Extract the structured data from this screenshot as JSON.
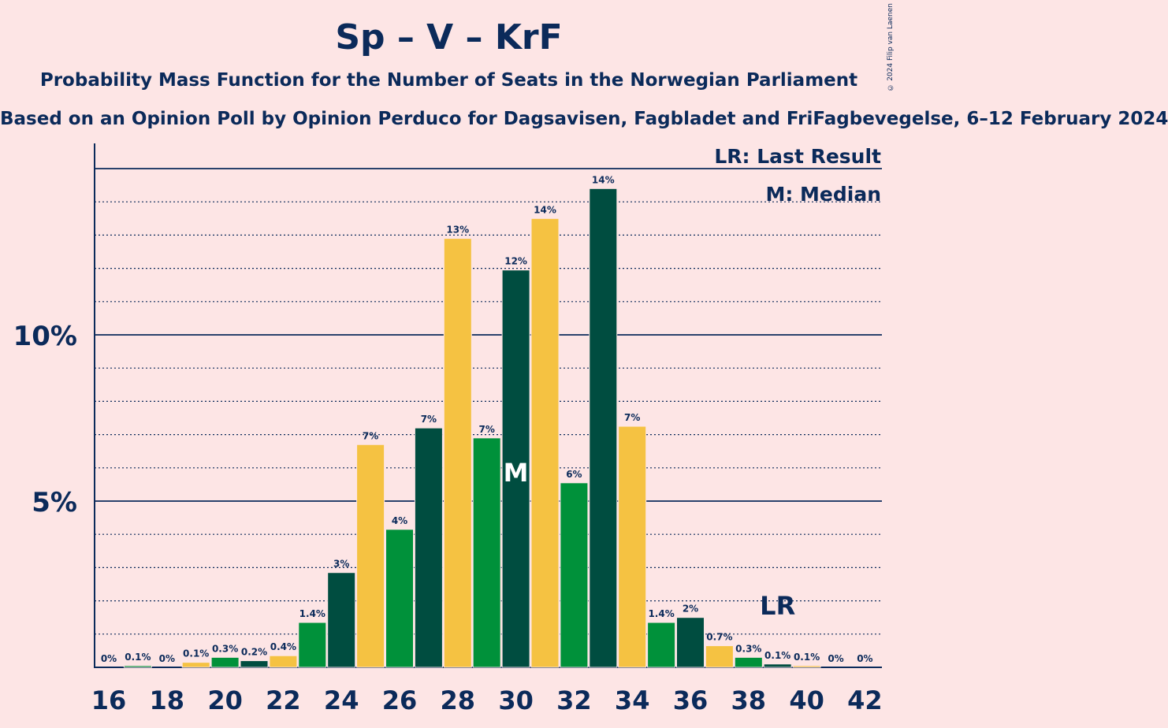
{
  "chart_data": {
    "type": "bar",
    "title": "Sp – V – KrF",
    "subtitle": "Probability Mass Function for the Number of Seats in the Norwegian Parliament",
    "subsubtitle": "Based on an Opinion Poll by Opinion Perduco for Dagsavisen, Fagbladet and FriFagbevegelse, 6–12 February 2024",
    "copyright": "© 2024 Filip van Laenen",
    "legend": {
      "lr": "LR: Last Result",
      "m": "M: Median",
      "placement": "top-right"
    },
    "categories": [
      16,
      17,
      18,
      19,
      20,
      21,
      22,
      23,
      24,
      25,
      26,
      27,
      28,
      29,
      30,
      31,
      32,
      33,
      34,
      35,
      36,
      37,
      38,
      39,
      40,
      41,
      42
    ],
    "values": [
      0.0,
      0.05,
      0.0,
      0.15,
      0.3,
      0.2,
      0.35,
      1.35,
      2.85,
      6.7,
      4.15,
      7.2,
      12.9,
      6.9,
      11.95,
      13.5,
      5.55,
      14.4,
      7.25,
      1.35,
      1.5,
      0.65,
      0.3,
      0.1,
      0.05,
      0.0,
      0.0
    ],
    "labels": [
      "0%",
      "0.1%",
      "0%",
      "0.1%",
      "0.3%",
      "0.2%",
      "0.4%",
      "1.4%",
      "3%",
      "7%",
      "4%",
      "7%",
      "13%",
      "7%",
      "12%",
      "14%",
      "6%",
      "14%",
      "7%",
      "1.4%",
      "2%",
      "0.7%",
      "0.3%",
      "0.1%",
      "0.1%",
      "0%",
      "0%"
    ],
    "colors": [
      "#f5c242",
      "#00913a",
      "#004d40"
    ],
    "x_tick_labels": [
      "16",
      "18",
      "20",
      "22",
      "24",
      "26",
      "28",
      "30",
      "32",
      "34",
      "36",
      "38",
      "40",
      "42"
    ],
    "y_ticks": [
      {
        "value": 5,
        "label": "5%"
      },
      {
        "value": 10,
        "label": "10%"
      }
    ],
    "ylim": [
      0,
      15.7
    ],
    "median_seat": 30,
    "median_label": "M",
    "last_result_seat": 39,
    "last_result_label": "LR",
    "grid": "dotted every 1%, solid at 5% and 10%"
  }
}
